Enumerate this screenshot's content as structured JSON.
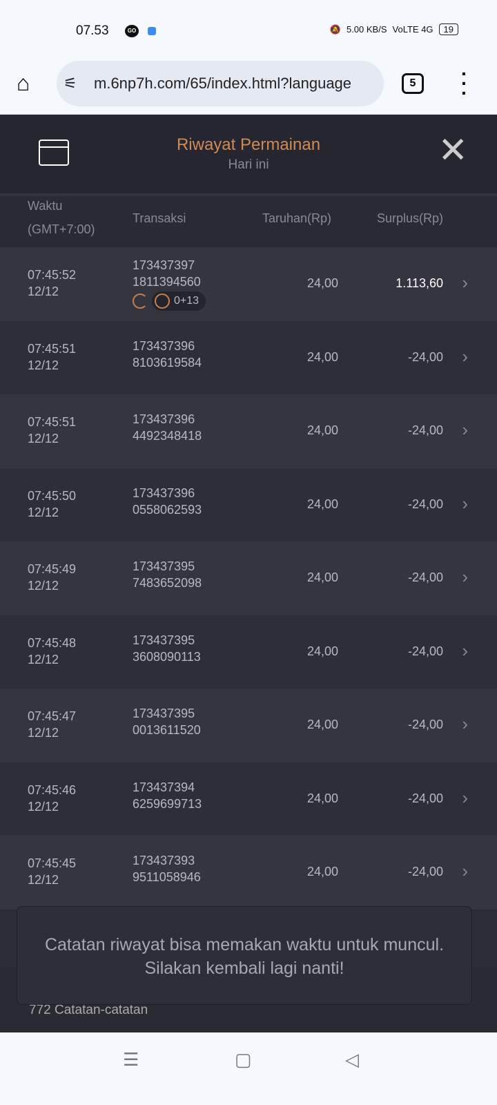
{
  "status_bar": {
    "time": "07.53",
    "speed": "5.00 KB/S",
    "network": "VoLTE 4G",
    "battery": "19"
  },
  "browser": {
    "url": "m.6np7h.com/65/index.html?language",
    "tab_count": "5"
  },
  "header": {
    "title": "Riwayat Permainan",
    "subtitle": "Hari ini"
  },
  "columns": {
    "time": "Waktu",
    "timezone": "(GMT+7:00)",
    "transaction": "Transaksi",
    "bet": "Taruhan(Rp)",
    "surplus": "Surplus(Rp)"
  },
  "rows": [
    {
      "time": "07:45:52",
      "date": "12/12",
      "tx1": "173437397",
      "tx2": "1811394560",
      "bet": "24,00",
      "surplus": "1.113,60",
      "badge": "0+13"
    },
    {
      "time": "07:45:51",
      "date": "12/12",
      "tx1": "173437396",
      "tx2": "8103619584",
      "bet": "24,00",
      "surplus": "-24,00"
    },
    {
      "time": "07:45:51",
      "date": "12/12",
      "tx1": "173437396",
      "tx2": "4492348418",
      "bet": "24,00",
      "surplus": "-24,00"
    },
    {
      "time": "07:45:50",
      "date": "12/12",
      "tx1": "173437396",
      "tx2": "0558062593",
      "bet": "24,00",
      "surplus": "-24,00"
    },
    {
      "time": "07:45:49",
      "date": "12/12",
      "tx1": "173437395",
      "tx2": "7483652098",
      "bet": "24,00",
      "surplus": "-24,00"
    },
    {
      "time": "07:45:48",
      "date": "12/12",
      "tx1": "173437395",
      "tx2": "3608090113",
      "bet": "24,00",
      "surplus": "-24,00"
    },
    {
      "time": "07:45:47",
      "date": "12/12",
      "tx1": "173437395",
      "tx2": "0013611520",
      "bet": "24,00",
      "surplus": "-24,00"
    },
    {
      "time": "07:45:46",
      "date": "12/12",
      "tx1": "173437394",
      "tx2": "6259699713",
      "bet": "24,00",
      "surplus": "-24,00"
    },
    {
      "time": "07:45:45",
      "date": "12/12",
      "tx1": "173437393",
      "tx2": "9511058946",
      "bet": "24,00",
      "surplus": "-24,00"
    }
  ],
  "toast": "Catatan riwayat bisa memakan waktu untuk muncul. Silakan kembali lagi nanti!",
  "footer": {
    "count": "772 Catatan-catatan"
  },
  "colors": {
    "accent": "#d08a55",
    "background": "#2c2c36"
  }
}
